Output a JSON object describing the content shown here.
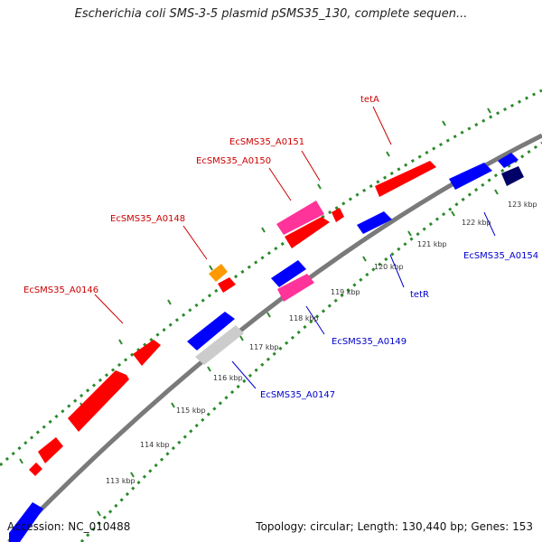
{
  "title": "Escherichia coli SMS-3-5 plasmid pSMS35_130, complete sequen...",
  "footer": {
    "accession": "Accession: NC_010488",
    "summary": "Topology: circular; Length: 130,440 bp; Genes: 153"
  },
  "colors": {
    "forward": "#ff0000",
    "reverse": "#0000ff",
    "pink": "#ff3399",
    "orange": "#ff9900",
    "gray": "#cccccc",
    "navy": "#000066",
    "backbone": "#888888",
    "dots": "#2a8a2a",
    "label_red": "#cc0000",
    "label_blue": "#0000cc"
  },
  "kbp_ticks": [
    "113 kbp",
    "114 kbp",
    "115 kbp",
    "116 kbp",
    "117 kbp",
    "118 kbp",
    "119 kbp",
    "120 kbp",
    "121 kbp",
    "122 kbp",
    "123 kbp"
  ],
  "gene_labels": [
    {
      "text": "tetA",
      "strand": "forward"
    },
    {
      "text": "EcSMS35_A0151",
      "strand": "forward"
    },
    {
      "text": "EcSMS35_A0150",
      "strand": "forward"
    },
    {
      "text": "EcSMS35_A0148",
      "strand": "forward"
    },
    {
      "text": "EcSMS35_A0146",
      "strand": "forward"
    },
    {
      "text": "EcSMS35_A0154",
      "strand": "reverse"
    },
    {
      "text": "tetR",
      "strand": "reverse"
    },
    {
      "text": "EcSMS35_A0149",
      "strand": "reverse"
    },
    {
      "text": "EcSMS35_A0147",
      "strand": "reverse"
    }
  ]
}
